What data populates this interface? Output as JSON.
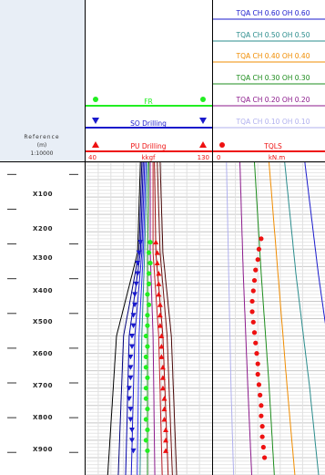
{
  "reference": {
    "title": "Reference",
    "unit": "(m)",
    "scale": "1:10000",
    "depth_labels": [
      "X100",
      "X200",
      "X300",
      "X400",
      "X500",
      "X600",
      "X700",
      "X800",
      "X900"
    ]
  },
  "left_track": {
    "curves": [
      {
        "name": "FR",
        "color": "#22ee22"
      },
      {
        "name": "SO Drilling",
        "color": "#1a1acc"
      },
      {
        "name": "PU Drilling",
        "color": "#ee1111"
      }
    ],
    "scale_min": "40",
    "scale_unit": "kkgf",
    "scale_max": "130"
  },
  "right_track": {
    "curves": [
      {
        "name": "TQA CH 0.60 OH 0.60",
        "color": "#1a1acc"
      },
      {
        "name": "TQA CH 0.50 OH 0.50",
        "color": "#2a8c8c"
      },
      {
        "name": "TQA CH 0.40 OH 0.40",
        "color": "#f08c00"
      },
      {
        "name": "TQA CH 0.30 OH 0.30",
        "color": "#1c8c1c"
      },
      {
        "name": "TQA CH 0.20 OH 0.20",
        "color": "#8c1a8c"
      },
      {
        "name": "TQA CH 0.10 OH 0.10",
        "color": "#b0b0ee"
      },
      {
        "name": "TQLS",
        "color": "#ee1111"
      }
    ],
    "scale_min": "0",
    "scale_unit": "kN.m"
  },
  "chart_data": {
    "type": "line",
    "depth_axis": {
      "labels": [
        "X100",
        "X200",
        "X300",
        "X400",
        "X500",
        "X600",
        "X700",
        "X800",
        "X900"
      ]
    },
    "left_track": {
      "xlim": [
        40,
        130
      ],
      "model_depth": [
        0,
        260,
        500,
        820
      ],
      "model_curves": [
        {
          "color": "#000000",
          "x": [
            79,
            77,
            62,
            57
          ]
        },
        {
          "color": "#00007a",
          "x": [
            80,
            78,
            67,
            64
          ]
        },
        {
          "color": "#0000aa",
          "x": [
            81,
            79,
            71,
            69
          ]
        },
        {
          "color": "#1a1acc",
          "x": [
            82,
            80,
            75,
            73
          ]
        },
        {
          "color": "#3030ee",
          "x": [
            83,
            81,
            78,
            77
          ]
        },
        {
          "color": "#2a8c8c",
          "x": [
            84,
            82,
            80,
            79
          ]
        },
        {
          "color": "#1c8c1c",
          "x": [
            85,
            84,
            84,
            84
          ]
        },
        {
          "color": "#8c1a8c",
          "x": [
            86,
            86,
            88,
            89
          ]
        },
        {
          "color": "#c0202a",
          "x": [
            88,
            88,
            92,
            94
          ]
        },
        {
          "color": "#9a1010",
          "x": [
            89,
            90,
            95,
            98
          ]
        },
        {
          "color": "#701010",
          "x": [
            91,
            93,
            98,
            101
          ]
        },
        {
          "color": "#4a0808",
          "x": [
            93,
            95,
            101,
            104
          ]
        }
      ],
      "measured": {
        "depth": [
          230,
          260,
          290,
          320,
          350,
          380,
          410,
          440,
          470,
          500,
          530,
          560,
          590,
          620,
          650,
          680,
          710,
          740,
          770,
          800,
          830
        ],
        "fr": [
          86,
          85,
          86,
          85,
          85,
          84,
          85,
          84,
          84,
          83,
          84,
          83,
          83,
          84,
          83,
          83,
          84,
          83,
          84,
          83,
          84
        ],
        "so": [
          79,
          78,
          77,
          77,
          76,
          75,
          75,
          74,
          74,
          73,
          73,
          72,
          72,
          72,
          71,
          71,
          72,
          72,
          73,
          73,
          74
        ],
        "pu": [
          90,
          91,
          91,
          92,
          92,
          92,
          93,
          93,
          93,
          94,
          94,
          94,
          95,
          95,
          95,
          96,
          96,
          96,
          97,
          97,
          97
        ]
      }
    },
    "right_track": {
      "model_depth": [
        0,
        320,
        640,
        860
      ],
      "model_curves": [
        {
          "color": "#1a1acc",
          "x": [
            0.82,
            0.94,
            1.08,
            1.16
          ]
        },
        {
          "color": "#2a8c8c",
          "x": [
            0.64,
            0.74,
            0.86,
            0.93
          ]
        },
        {
          "color": "#f08c00",
          "x": [
            0.5,
            0.58,
            0.66,
            0.72
          ]
        },
        {
          "color": "#1c8c1c",
          "x": [
            0.37,
            0.43,
            0.5,
            0.54
          ]
        },
        {
          "color": "#8c1a8c",
          "x": [
            0.24,
            0.27,
            0.31,
            0.34
          ]
        },
        {
          "color": "#b0b0ee",
          "x": [
            0.12,
            0.14,
            0.16,
            0.18
          ]
        }
      ],
      "tqls": {
        "depth": [
          220,
          250,
          280,
          310,
          340,
          370,
          400,
          430,
          460,
          490,
          520,
          550,
          580,
          610,
          640,
          670,
          700,
          730,
          760,
          790,
          820,
          850
        ],
        "x": [
          0.43,
          0.41,
          0.4,
          0.38,
          0.37,
          0.36,
          0.35,
          0.35,
          0.36,
          0.37,
          0.38,
          0.39,
          0.4,
          0.4,
          0.41,
          0.42,
          0.43,
          0.43,
          0.44,
          0.44,
          0.45,
          0.46
        ]
      }
    }
  }
}
